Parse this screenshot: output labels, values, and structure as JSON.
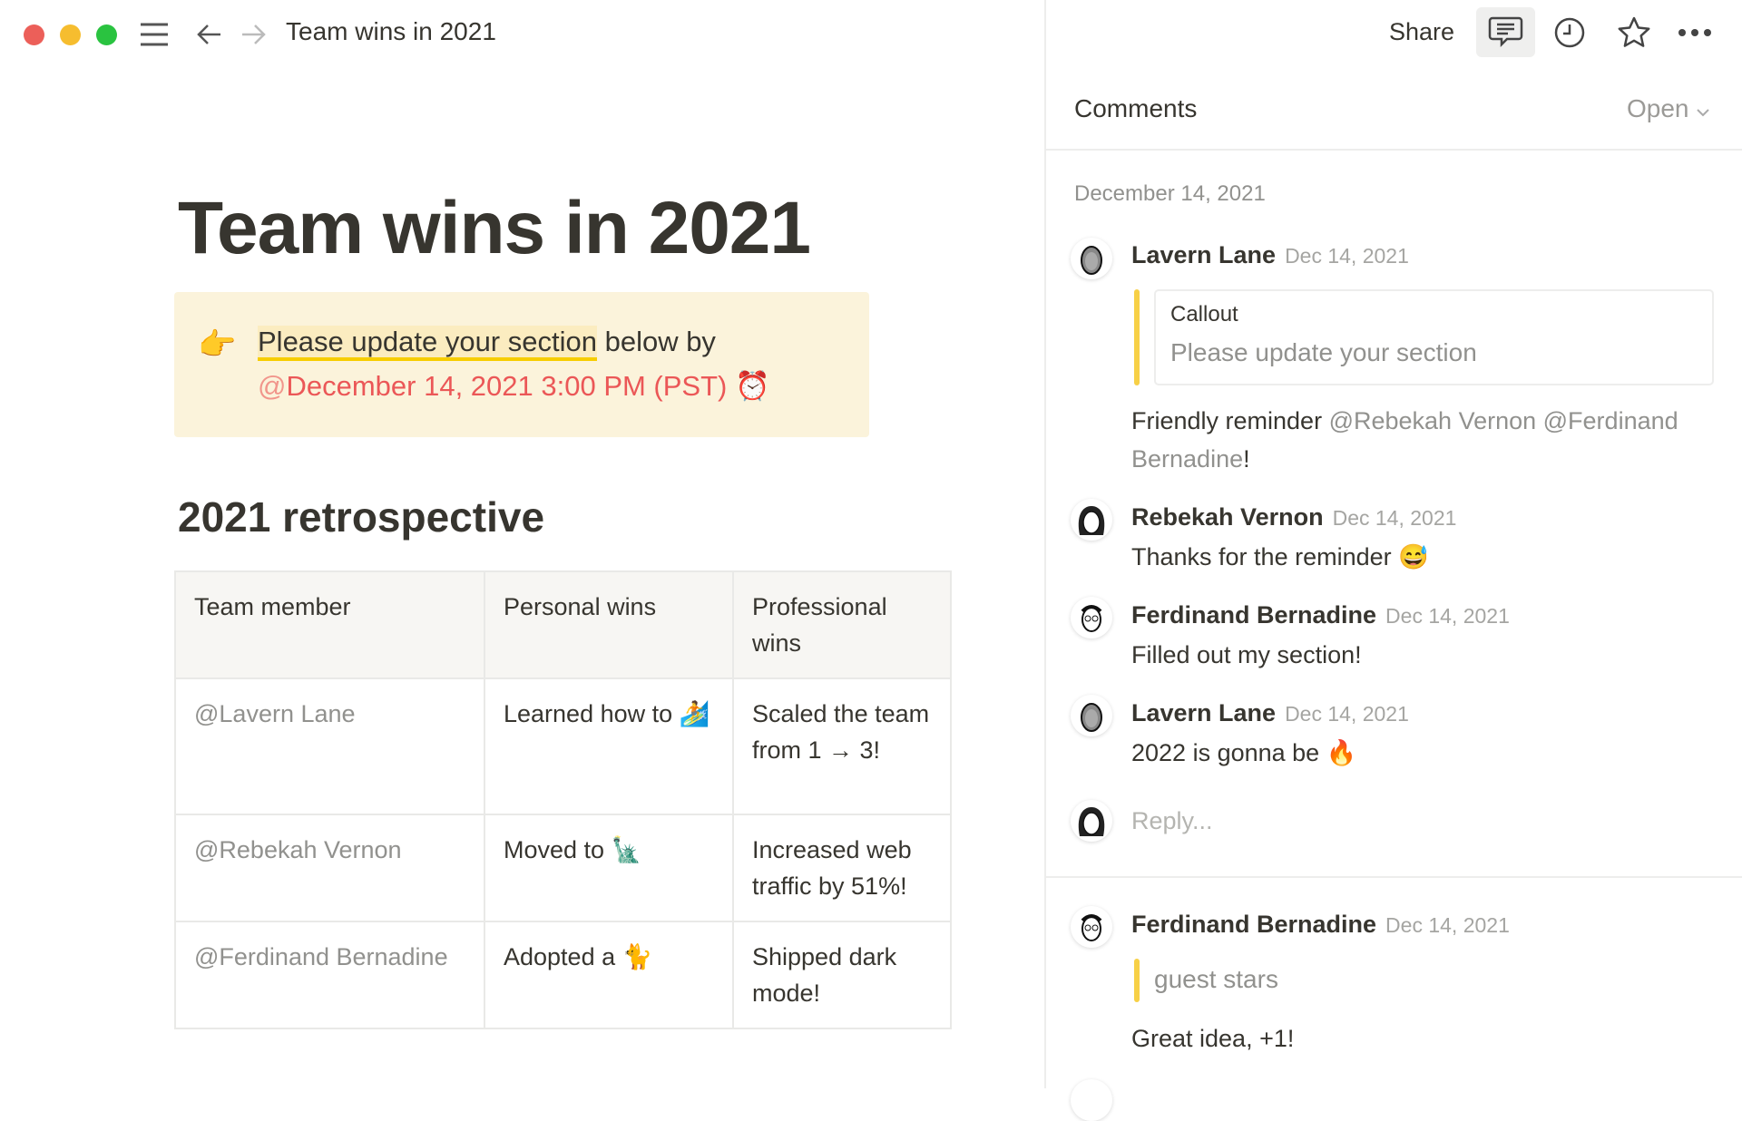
{
  "window": {
    "traffic_lights": {
      "close": "#ec5f59",
      "minimize": "#f6bd2f",
      "maximize": "#2ac340"
    },
    "breadcrumb": "Team wins in 2021",
    "icons": [
      "menu-icon",
      "back-arrow-icon",
      "forward-arrow-icon"
    ]
  },
  "topbar": {
    "share_label": "Share",
    "icons": [
      "comment-icon",
      "clock-icon",
      "star-icon",
      "more-icon"
    ]
  },
  "page": {
    "title": "Team wins in 2021",
    "callout": {
      "emoji": "👉",
      "highlighted": "Please update your section",
      "rest": " below by",
      "reminder_at": "@",
      "reminder": "December 14, 2021 3:00 PM (PST)",
      "alarm_icon": "⏰",
      "accent": "#eb5757"
    },
    "heading": "2021 retrospective",
    "table": {
      "headers": [
        "Team member",
        "Personal wins",
        "Professional wins"
      ],
      "rows": [
        [
          "@Lavern Lane",
          "Learned how to 🏄",
          "Scaled the team from 1 → 3!"
        ],
        [
          "@Rebekah Vernon",
          "Moved to 🗽",
          "Increased web traffic by 51%!"
        ],
        [
          "@Ferdinand Bernadine",
          "Adopted a 🐈",
          "Shipped dark mode!"
        ]
      ]
    }
  },
  "comments": {
    "title": "Comments",
    "filter": "Open",
    "thread1": {
      "date_header": "December 14, 2021",
      "items": [
        {
          "author": "Lavern Lane",
          "date": "Dec 14, 2021",
          "quote_label": "Callout",
          "quote_text": "Please update your section",
          "text": "Friendly reminder ",
          "mentions": "@Rebekah Vernon @Ferdinand Bernadine",
          "suffix": "!"
        },
        {
          "author": "Rebekah Vernon",
          "date": "Dec 14, 2021",
          "text": "Thanks for the reminder 😅"
        },
        {
          "author": "Ferdinand Bernadine",
          "date": "Dec 14, 2021",
          "text": "Filled out my section!"
        },
        {
          "author": "Lavern Lane",
          "date": "Dec 14, 2021",
          "text": "2022 is gonna be 🔥"
        }
      ],
      "reply_placeholder": "Reply..."
    },
    "thread2": {
      "items": [
        {
          "author": "Ferdinand Bernadine",
          "date": "Dec 14, 2021",
          "quote_text": "guest stars",
          "text": "Great idea, +1!"
        }
      ]
    }
  }
}
